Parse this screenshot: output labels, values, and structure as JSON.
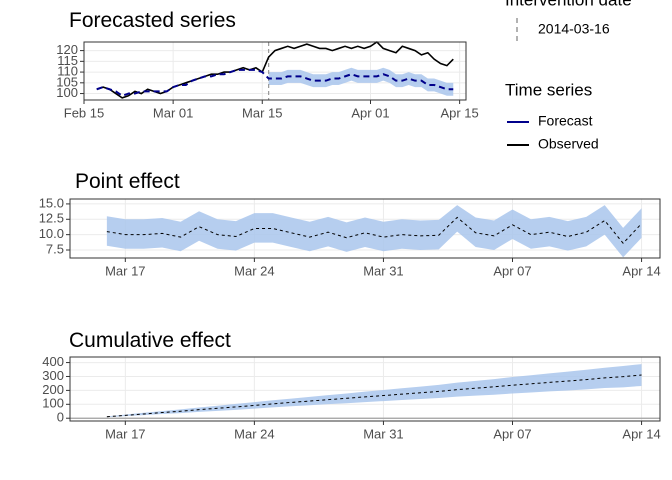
{
  "chart_data": [
    {
      "type": "line",
      "title": "Forecasted series",
      "x": [
        "Feb 17",
        "Feb 18",
        "Feb 19",
        "Feb 20",
        "Feb 21",
        "Feb 22",
        "Feb 23",
        "Feb 24",
        "Feb 25",
        "Feb 26",
        "Feb 27",
        "Feb 28",
        "Mar 01",
        "Mar 02",
        "Mar 03",
        "Mar 04",
        "Mar 05",
        "Mar 06",
        "Mar 07",
        "Mar 08",
        "Mar 09",
        "Mar 10",
        "Mar 11",
        "Mar 12",
        "Mar 13",
        "Mar 14",
        "Mar 15",
        "Mar 16",
        "Mar 17",
        "Mar 18",
        "Mar 19",
        "Mar 20",
        "Mar 21",
        "Mar 22",
        "Mar 23",
        "Mar 24",
        "Mar 25",
        "Mar 26",
        "Mar 27",
        "Mar 28",
        "Mar 29",
        "Mar 30",
        "Mar 31",
        "Apr 01",
        "Apr 02",
        "Apr 03",
        "Apr 04",
        "Apr 05",
        "Apr 06",
        "Apr 07",
        "Apr 08",
        "Apr 09",
        "Apr 10",
        "Apr 11",
        "Apr 12",
        "Apr 13",
        "Apr 14"
      ],
      "series": [
        {
          "name": "Forecast",
          "color": "#00008b",
          "dash": true,
          "values": [
            102,
            103,
            102,
            101,
            99,
            100,
            100,
            101,
            101,
            101,
            101,
            101,
            103,
            104,
            104,
            106,
            107,
            108,
            108,
            109,
            109,
            110,
            111,
            111,
            111,
            111,
            110,
            107,
            107,
            107,
            108,
            108,
            108,
            107,
            106,
            106,
            106,
            107,
            107,
            108,
            109,
            108,
            108,
            108,
            108,
            109,
            108,
            106,
            106,
            107,
            106,
            106,
            104,
            104,
            103,
            102,
            102
          ]
        },
        {
          "name": "Observed",
          "color": "#000000",
          "dash": false,
          "values": [
            102,
            103,
            102,
            100,
            98,
            99,
            101,
            100,
            102,
            101,
            100,
            101,
            103,
            104,
            105,
            106,
            107,
            108,
            109,
            109,
            110,
            110,
            111,
            112,
            111,
            112,
            110,
            117,
            120,
            121,
            122,
            121,
            122,
            123,
            122,
            121,
            121,
            120,
            121,
            122,
            121,
            122,
            121,
            122,
            124,
            121,
            120,
            119,
            122,
            121,
            120,
            118,
            119,
            116,
            114,
            113,
            116
          ]
        }
      ],
      "band": {
        "color": "#a9c6ec",
        "lower": [
          null,
          null,
          null,
          null,
          null,
          null,
          null,
          null,
          null,
          null,
          null,
          null,
          null,
          null,
          null,
          null,
          null,
          null,
          null,
          null,
          null,
          null,
          null,
          null,
          null,
          null,
          null,
          104,
          104,
          104,
          105,
          105,
          105,
          104,
          103,
          103,
          103,
          104,
          104,
          105,
          106,
          105,
          105,
          105,
          105,
          106,
          105,
          103,
          103,
          104,
          103,
          103,
          101,
          101,
          100,
          99,
          99
        ],
        "upper": [
          null,
          null,
          null,
          null,
          null,
          null,
          null,
          null,
          null,
          null,
          null,
          null,
          null,
          null,
          null,
          null,
          null,
          null,
          null,
          null,
          null,
          null,
          null,
          null,
          null,
          null,
          null,
          110,
          110,
          110,
          111,
          111,
          111,
          110,
          109,
          109,
          109,
          110,
          110,
          111,
          112,
          111,
          111,
          111,
          111,
          112,
          111,
          109,
          109,
          110,
          109,
          109,
          107,
          107,
          106,
          105,
          105
        ]
      },
      "vline": {
        "x": "Mar 16",
        "color": "#999999"
      },
      "xlim": [
        "Feb 15",
        "Apr 16"
      ],
      "xticks": [
        "Feb 15",
        "Mar 01",
        "Mar 15",
        "Apr 01",
        "Apr 15"
      ],
      "ylim": [
        97,
        124
      ],
      "yticks": [
        100,
        105,
        110,
        115,
        120
      ],
      "grid": true,
      "legend": {
        "intervention_title": "Intervention date",
        "intervention_label": "2014-03-16",
        "series_title": "Time series"
      }
    },
    {
      "type": "line",
      "title": "Point effect",
      "x": [
        "Mar 16",
        "Mar 17",
        "Mar 18",
        "Mar 19",
        "Mar 20",
        "Mar 21",
        "Mar 22",
        "Mar 23",
        "Mar 24",
        "Mar 25",
        "Mar 26",
        "Mar 27",
        "Mar 28",
        "Mar 29",
        "Mar 30",
        "Mar 31",
        "Apr 01",
        "Apr 02",
        "Apr 03",
        "Apr 04",
        "Apr 05",
        "Apr 06",
        "Apr 07",
        "Apr 08",
        "Apr 09",
        "Apr 10",
        "Apr 11",
        "Apr 12",
        "Apr 13",
        "Apr 14"
      ],
      "values": [
        10.5,
        10.0,
        10.0,
        10.2,
        9.6,
        11.3,
        10.0,
        9.7,
        11.0,
        11.0,
        10.3,
        9.6,
        10.4,
        9.5,
        10.3,
        9.6,
        10.0,
        9.8,
        9.9,
        12.8,
        10.3,
        9.8,
        11.6,
        10.0,
        10.4,
        9.7,
        10.4,
        12.3,
        8.6,
        11.8
      ],
      "color": "#000000",
      "dash": true,
      "band": {
        "color": "#a9c6ec",
        "lower": [
          8.2,
          7.7,
          7.7,
          7.9,
          7.3,
          9.0,
          7.7,
          7.4,
          8.7,
          8.7,
          8.0,
          7.3,
          8.1,
          7.2,
          8.0,
          7.3,
          7.7,
          7.5,
          7.6,
          10.5,
          8.0,
          7.5,
          9.3,
          7.7,
          8.1,
          7.4,
          8.1,
          10.0,
          6.3,
          9.5
        ],
        "upper": [
          13.0,
          12.5,
          12.5,
          12.7,
          12.1,
          13.8,
          12.5,
          12.2,
          13.5,
          13.5,
          12.8,
          12.1,
          12.9,
          12.0,
          12.8,
          12.1,
          12.5,
          12.3,
          12.4,
          14.8,
          12.8,
          12.3,
          14.1,
          12.5,
          12.9,
          12.2,
          12.9,
          14.8,
          11.1,
          14.3
        ]
      },
      "xlim": [
        "Mar 14",
        "Apr 15"
      ],
      "xticks": [
        "Mar 17",
        "Mar 24",
        "Mar 31",
        "Apr 07",
        "Apr 14"
      ],
      "ylim": [
        6.2,
        15.8
      ],
      "yticks": [
        7.5,
        {
          "value": 10,
          "label": "10.0"
        },
        12.5,
        {
          "value": 15,
          "label": "15.0"
        }
      ],
      "grid": true
    },
    {
      "type": "line",
      "title": "Cumulative effect",
      "x": [
        "Mar 16",
        "Mar 17",
        "Mar 18",
        "Mar 19",
        "Mar 20",
        "Mar 21",
        "Mar 22",
        "Mar 23",
        "Mar 24",
        "Mar 25",
        "Mar 26",
        "Mar 27",
        "Mar 28",
        "Mar 29",
        "Mar 30",
        "Mar 31",
        "Apr 01",
        "Apr 02",
        "Apr 03",
        "Apr 04",
        "Apr 05",
        "Apr 06",
        "Apr 07",
        "Apr 08",
        "Apr 09",
        "Apr 10",
        "Apr 11",
        "Apr 12",
        "Apr 13",
        "Apr 14"
      ],
      "values": [
        10.5,
        20.5,
        30.5,
        40.7,
        50.3,
        61.6,
        71.6,
        81.3,
        92.3,
        103.3,
        113.6,
        123.2,
        133.6,
        143.1,
        153.4,
        163.0,
        173.0,
        182.8,
        192.7,
        205.5,
        215.8,
        225.6,
        237.2,
        247.2,
        257.6,
        267.3,
        277.7,
        290.0,
        298.6,
        310.4
      ],
      "color": "#000000",
      "dash": true,
      "band": {
        "color": "#a9c6ec",
        "lower": [
          8,
          15,
          22,
          30,
          37,
          46,
          53,
          60,
          69,
          78,
          86,
          93,
          101,
          108,
          116,
          123,
          131,
          138,
          145,
          155,
          162,
          169,
          178,
          185,
          193,
          199,
          207,
          217,
          222,
          232
        ],
        "upper": [
          13,
          26,
          39,
          51,
          64,
          77,
          90,
          103,
          116,
          129,
          141,
          153,
          166,
          178,
          191,
          203,
          215,
          227,
          240,
          256,
          268,
          281,
          296,
          309,
          322,
          335,
          348,
          363,
          375,
          389
        ]
      },
      "hline": {
        "y": 0,
        "color": "#a0a0a0"
      },
      "xlim": [
        "Mar 14",
        "Apr 15"
      ],
      "xticks": [
        "Mar 17",
        "Mar 24",
        "Mar 31",
        "Apr 07",
        "Apr 14"
      ],
      "ylim": [
        -20,
        440
      ],
      "yticks": [
        0,
        100,
        200,
        300,
        400
      ],
      "grid": true
    }
  ]
}
